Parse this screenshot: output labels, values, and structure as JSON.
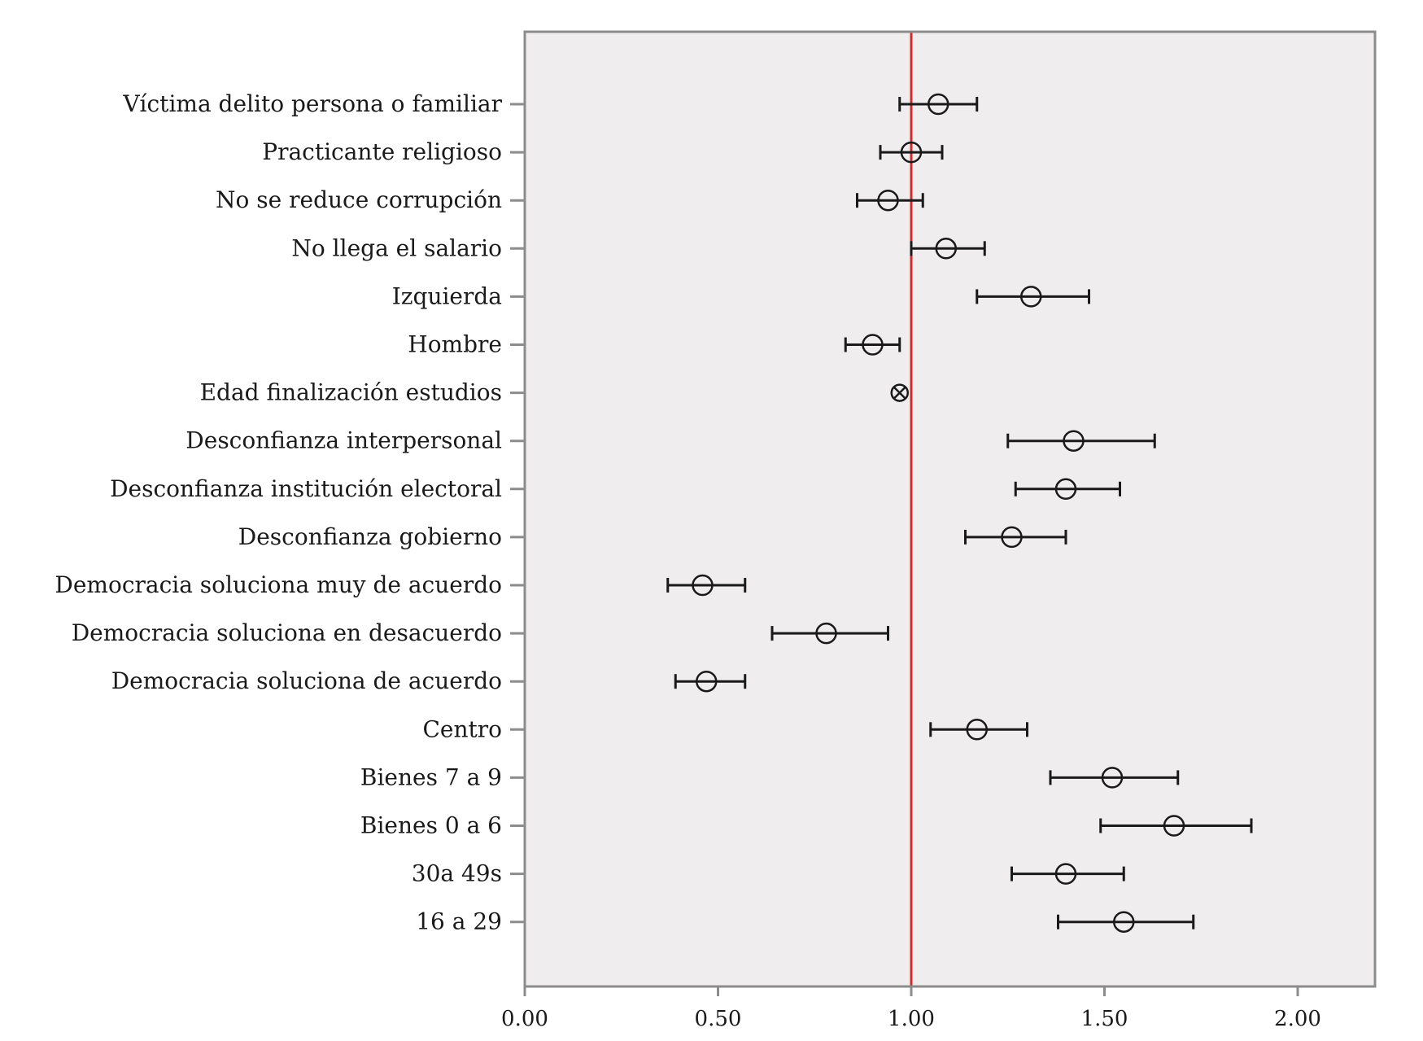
{
  "chart_data": {
    "type": "scatter",
    "subtype": "forest-plot-with-error-bars",
    "title": "",
    "xlabel": "",
    "ylabel": "",
    "xlim": [
      0,
      2.2
    ],
    "x_ticks": [
      0.0,
      0.5,
      1.0,
      1.5,
      2.0
    ],
    "x_tick_labels": [
      "0.00",
      "0.50",
      "1.00",
      "1.50",
      "2.00"
    ],
    "reference_line": {
      "x": 1.0,
      "color": "#d42a2a"
    },
    "plot_background": "#efedee",
    "frame_color": "#8c8c8c",
    "marker_color": "#1a1a1a",
    "grid": false,
    "categories": [
      "Víctima delito persona o familiar",
      "Practicante religioso",
      "No se reduce corrupción",
      "No llega el salario",
      "Izquierda",
      "Hombre",
      "Edad finalización estudios",
      "Desconfianza interpersonal",
      "Desconfianza institución electoral",
      "Desconfianza gobierno",
      "Democracia soluciona muy de acuerdo",
      "Democracia soluciona en desacuerdo",
      "Democracia soluciona de acuerdo",
      "Centro",
      "Bienes 7 a 9",
      "Bienes 0 a 6",
      "30a 49s",
      "16 a 29"
    ],
    "points": [
      {
        "category": "Víctima delito persona o familiar",
        "estimate": 1.07,
        "lower": 0.97,
        "upper": 1.17,
        "marker": "circle"
      },
      {
        "category": "Practicante religioso",
        "estimate": 1.0,
        "lower": 0.92,
        "upper": 1.08,
        "marker": "circle"
      },
      {
        "category": "No se reduce corrupción",
        "estimate": 0.94,
        "lower": 0.86,
        "upper": 1.03,
        "marker": "circle"
      },
      {
        "category": "No llega el salario",
        "estimate": 1.09,
        "lower": 1.0,
        "upper": 1.19,
        "marker": "circle"
      },
      {
        "category": "Izquierda",
        "estimate": 1.31,
        "lower": 1.17,
        "upper": 1.46,
        "marker": "circle"
      },
      {
        "category": "Hombre",
        "estimate": 0.9,
        "lower": 0.83,
        "upper": 0.97,
        "marker": "circle"
      },
      {
        "category": "Edad finalización estudios",
        "estimate": 0.97,
        "lower": 0.97,
        "upper": 0.97,
        "marker": "circle-x"
      },
      {
        "category": "Desconfianza interpersonal",
        "estimate": 1.42,
        "lower": 1.25,
        "upper": 1.63,
        "marker": "circle"
      },
      {
        "category": "Desconfianza institución electoral",
        "estimate": 1.4,
        "lower": 1.27,
        "upper": 1.54,
        "marker": "circle"
      },
      {
        "category": "Desconfianza gobierno",
        "estimate": 1.26,
        "lower": 1.14,
        "upper": 1.4,
        "marker": "circle"
      },
      {
        "category": "Democracia soluciona muy de acuerdo",
        "estimate": 0.46,
        "lower": 0.37,
        "upper": 0.57,
        "marker": "circle"
      },
      {
        "category": "Democracia soluciona en desacuerdo",
        "estimate": 0.78,
        "lower": 0.64,
        "upper": 0.94,
        "marker": "circle"
      },
      {
        "category": "Democracia soluciona de acuerdo",
        "estimate": 0.47,
        "lower": 0.39,
        "upper": 0.57,
        "marker": "circle"
      },
      {
        "category": "Centro",
        "estimate": 1.17,
        "lower": 1.05,
        "upper": 1.3,
        "marker": "circle"
      },
      {
        "category": "Bienes 7 a 9",
        "estimate": 1.52,
        "lower": 1.36,
        "upper": 1.69,
        "marker": "circle"
      },
      {
        "category": "Bienes 0 a 6",
        "estimate": 1.68,
        "lower": 1.49,
        "upper": 1.88,
        "marker": "circle"
      },
      {
        "category": "30a 49s",
        "estimate": 1.4,
        "lower": 1.26,
        "upper": 1.55,
        "marker": "circle"
      },
      {
        "category": "16 a 29",
        "estimate": 1.55,
        "lower": 1.38,
        "upper": 1.73,
        "marker": "circle"
      }
    ]
  }
}
